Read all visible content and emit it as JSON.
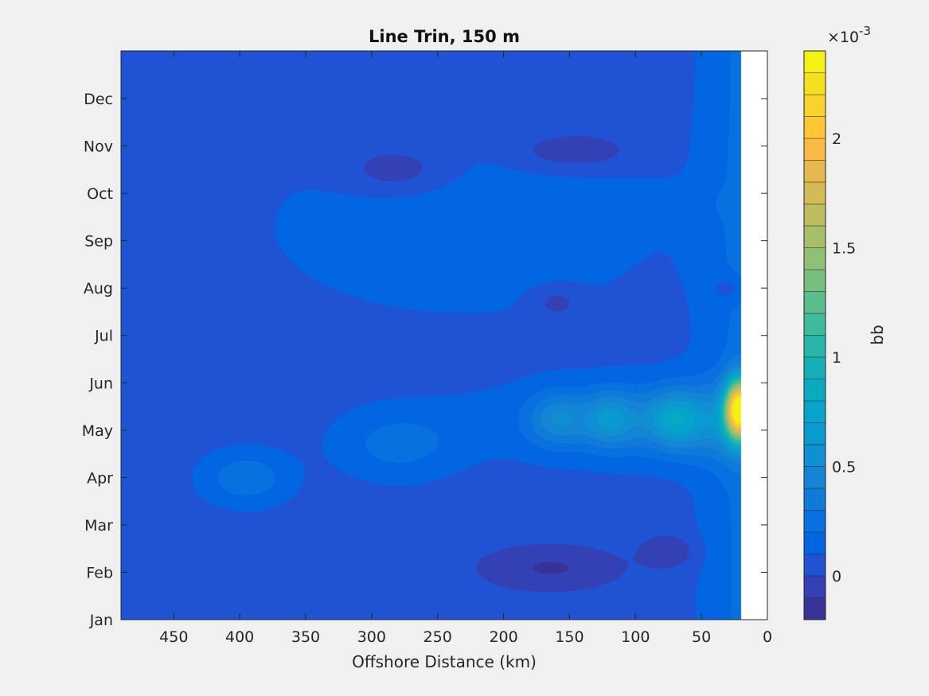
{
  "chart_data": {
    "type": "heatmap",
    "title": "Line Trin, 150 m",
    "xlabel": "Offshore Distance (km)",
    "ylabel": "",
    "xlim": [
      0,
      490
    ],
    "x_reversed": true,
    "x_ticks": [
      450,
      400,
      350,
      300,
      250,
      200,
      150,
      100,
      50,
      0
    ],
    "y_ticks": [
      "Jan",
      "Feb",
      "Mar",
      "Apr",
      "May",
      "Jun",
      "Jul",
      "Aug",
      "Sep",
      "Oct",
      "Nov",
      "Dec"
    ],
    "colorbar": {
      "label": "bb",
      "exponent_label": "×10",
      "exponent_power": "-3",
      "range": [
        -0.2,
        2.4
      ],
      "ticks": [
        "0",
        "0.5",
        "1",
        "1.5",
        "2"
      ],
      "tick_values": [
        0,
        0.5,
        1,
        1.5,
        2
      ],
      "levels": 26,
      "colormap": "parula"
    },
    "no_data_region_km": [
      0,
      20
    ],
    "features": [
      {
        "x": 25,
        "month": 4.45,
        "value": 2.3,
        "note": "coastal maximum"
      },
      {
        "x": 70,
        "month": 4.25,
        "value": 1.0
      },
      {
        "x": 120,
        "month": 4.25,
        "value": 0.95
      },
      {
        "x": 160,
        "month": 4.25,
        "value": 0.85
      },
      {
        "x": 280,
        "month": 3.7,
        "value": 0.45
      },
      {
        "x": 395,
        "month": 3.0,
        "value": 0.5
      },
      {
        "x": 160,
        "month": 1.1,
        "value": -0.1
      },
      {
        "x": 280,
        "month": 9.5,
        "value": -0.1
      },
      {
        "x": 150,
        "month": 9.9,
        "value": -0.1
      },
      {
        "x": 30,
        "month": 7.0,
        "value": -0.05
      }
    ]
  }
}
